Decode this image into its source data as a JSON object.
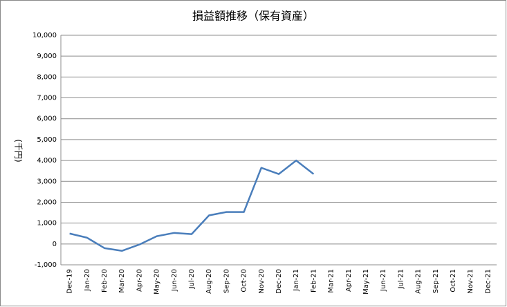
{
  "chart_data": {
    "type": "line",
    "title": "損益額推移（保有資産）",
    "y_label": "(千円)",
    "categories": [
      "Dec-19",
      "Jan-20",
      "Feb-20",
      "Mar-20",
      "Apr-20",
      "May-20",
      "Jun-20",
      "Jul-20",
      "Aug-20",
      "Sep-20",
      "Oct-20",
      "Nov-20",
      "Dec-20",
      "Jan-21",
      "Feb-21",
      "Mar-21",
      "Apr-21",
      "May-21",
      "Jun-21",
      "Jul-21",
      "Aug-21",
      "Sep-21",
      "Oct-21",
      "Nov-21",
      "Dec-21"
    ],
    "series": [
      {
        "name": "損益額",
        "color": "#4a7ebb",
        "values": [
          500,
          300,
          -200,
          -330,
          -30,
          370,
          530,
          470,
          1370,
          1530,
          1530,
          3650,
          3350,
          4000,
          3350,
          null,
          null,
          null,
          null,
          null,
          null,
          null,
          null,
          null,
          null
        ]
      }
    ],
    "ylim": [
      -1000,
      10000
    ],
    "yticks": [
      {
        "value": -1000,
        "label": "-1,000"
      },
      0,
      {
        "value": 1000,
        "label": "1,000"
      },
      {
        "value": 2000,
        "label": "2,000"
      },
      {
        "value": 3000,
        "label": "3,000"
      },
      {
        "value": 4000,
        "label": "4,000"
      },
      {
        "value": 5000,
        "label": "5,000"
      },
      {
        "value": 6000,
        "label": "6,000"
      },
      {
        "value": 7000,
        "label": "7,000"
      },
      {
        "value": 8000,
        "label": "8,000"
      },
      {
        "value": 9000,
        "label": "9,000"
      },
      {
        "value": 10000,
        "label": "10,000"
      }
    ],
    "grid": true
  }
}
